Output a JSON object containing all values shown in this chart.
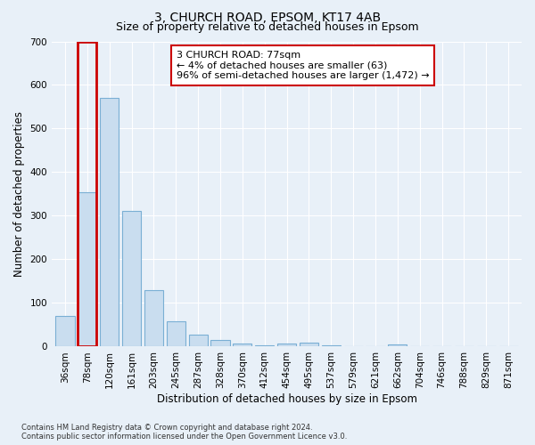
{
  "title1": "3, CHURCH ROAD, EPSOM, KT17 4AB",
  "title2": "Size of property relative to detached houses in Epsom",
  "xlabel": "Distribution of detached houses by size in Epsom",
  "ylabel": "Number of detached properties",
  "footnote": "Contains HM Land Registry data © Crown copyright and database right 2024.\nContains public sector information licensed under the Open Government Licence v3.0.",
  "annotation_title": "3 CHURCH ROAD: 77sqm",
  "annotation_line2": "← 4% of detached houses are smaller (63)",
  "annotation_line3": "96% of semi-detached houses are larger (1,472) →",
  "bar_labels": [
    "36sqm",
    "78sqm",
    "120sqm",
    "161sqm",
    "203sqm",
    "245sqm",
    "287sqm",
    "328sqm",
    "370sqm",
    "412sqm",
    "454sqm",
    "495sqm",
    "537sqm",
    "579sqm",
    "621sqm",
    "662sqm",
    "704sqm",
    "746sqm",
    "788sqm",
    "829sqm",
    "871sqm"
  ],
  "bar_values": [
    70,
    355,
    570,
    312,
    130,
    58,
    27,
    15,
    8,
    3,
    8,
    10,
    3,
    0,
    0,
    5,
    0,
    0,
    0,
    0,
    0
  ],
  "highlight_index": 1,
  "bar_color": "#c9ddef",
  "bar_edge_color": "#7aafd4",
  "highlight_edge_color": "#cc0000",
  "background_color": "#e8f0f8",
  "plot_bg_color": "#e8f0f8",
  "grid_color": "#ffffff",
  "ylim": [
    0,
    700
  ],
  "yticks": [
    0,
    100,
    200,
    300,
    400,
    500,
    600,
    700
  ],
  "annotation_box_color": "#ffffff",
  "annotation_box_edge": "#cc0000",
  "title_fontsize": 10,
  "subtitle_fontsize": 9,
  "axis_label_fontsize": 8.5,
  "tick_fontsize": 7.5,
  "annotation_fontsize": 8
}
